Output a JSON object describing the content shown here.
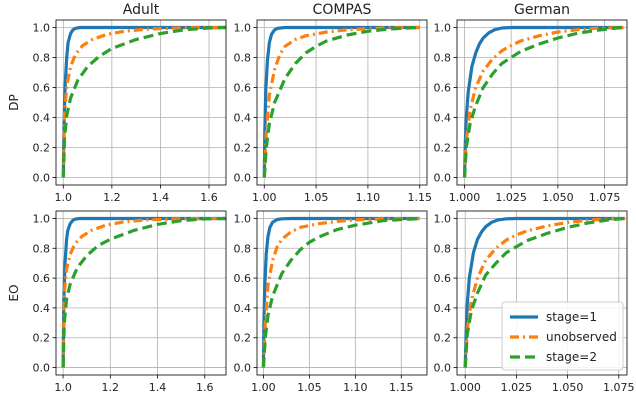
{
  "chart_data": [
    {
      "type": "line",
      "title": "Adult",
      "ylabel": "DP",
      "xlim": [
        0.97,
        1.67
      ],
      "ylim": [
        -0.05,
        1.05
      ],
      "xticks": [
        1.0,
        1.2,
        1.4,
        1.6
      ],
      "xtick_labels": [
        "1.0",
        "1.2",
        "1.4",
        "1.6"
      ],
      "yticks": [
        0,
        0.2,
        0.4,
        0.6,
        0.8,
        1.0
      ],
      "ytick_labels": [
        "0.0",
        "0.2",
        "0.4",
        "0.6",
        "0.8",
        "1.0"
      ],
      "grid": true,
      "series": [
        {
          "key": "s1",
          "x": [
            1.0,
            1.003,
            1.008,
            1.014,
            1.02,
            1.03,
            1.04,
            1.05,
            1.07,
            1.1,
            1.67
          ],
          "y": [
            0.0,
            0.35,
            0.62,
            0.8,
            0.9,
            0.96,
            0.985,
            0.995,
            1.0,
            1.0,
            1.0
          ]
        },
        {
          "key": "unobs",
          "x": [
            1.0,
            1.005,
            1.015,
            1.03,
            1.05,
            1.08,
            1.12,
            1.18,
            1.25,
            1.35,
            1.5,
            1.67
          ],
          "y": [
            0.0,
            0.42,
            0.62,
            0.74,
            0.82,
            0.88,
            0.92,
            0.955,
            0.975,
            0.99,
            0.998,
            1.0
          ]
        },
        {
          "key": "s2",
          "x": [
            1.0,
            1.005,
            1.015,
            1.03,
            1.06,
            1.1,
            1.15,
            1.2,
            1.3,
            1.4,
            1.5,
            1.6,
            1.67
          ],
          "y": [
            0.0,
            0.26,
            0.42,
            0.53,
            0.65,
            0.74,
            0.81,
            0.86,
            0.92,
            0.96,
            0.985,
            0.997,
            1.0
          ]
        }
      ]
    },
    {
      "type": "line",
      "title": "COMPAS",
      "ylabel": "",
      "xlim": [
        0.993,
        1.157
      ],
      "ylim": [
        -0.05,
        1.05
      ],
      "xticks": [
        1.0,
        1.05,
        1.1,
        1.15
      ],
      "xtick_labels": [
        "1.00",
        "1.05",
        "1.10",
        "1.15"
      ],
      "yticks": [
        0,
        0.2,
        0.4,
        0.6,
        0.8,
        1.0
      ],
      "ytick_labels": [
        "0.0",
        "0.2",
        "0.4",
        "0.6",
        "0.8",
        "1.0"
      ],
      "grid": true,
      "series": [
        {
          "key": "s1",
          "x": [
            1.0,
            1.0005,
            1.0015,
            1.003,
            1.005,
            1.007,
            1.01,
            1.013,
            1.02,
            1.03,
            1.15
          ],
          "y": [
            0.0,
            0.3,
            0.58,
            0.78,
            0.9,
            0.955,
            0.985,
            0.995,
            1.0,
            1.0,
            1.0
          ]
        },
        {
          "key": "unobs",
          "x": [
            1.0,
            1.002,
            1.005,
            1.01,
            1.015,
            1.02,
            1.03,
            1.04,
            1.06,
            1.08,
            1.1,
            1.12,
            1.15
          ],
          "y": [
            0.0,
            0.3,
            0.55,
            0.72,
            0.82,
            0.875,
            0.92,
            0.945,
            0.97,
            0.985,
            0.993,
            0.998,
            1.0
          ]
        },
        {
          "key": "s2",
          "x": [
            1.0,
            1.002,
            1.005,
            1.01,
            1.02,
            1.03,
            1.04,
            1.05,
            1.06,
            1.08,
            1.1,
            1.12,
            1.15
          ],
          "y": [
            0.0,
            0.2,
            0.36,
            0.5,
            0.66,
            0.76,
            0.83,
            0.875,
            0.91,
            0.95,
            0.975,
            0.99,
            1.0
          ]
        }
      ]
    },
    {
      "type": "line",
      "title": "German",
      "ylabel": "",
      "xlim": [
        0.996,
        1.087
      ],
      "ylim": [
        -0.05,
        1.05
      ],
      "xticks": [
        1.0,
        1.025,
        1.05,
        1.075
      ],
      "xtick_labels": [
        "1.000",
        "1.025",
        "1.050",
        "1.075"
      ],
      "yticks": [
        0,
        0.2,
        0.4,
        0.6,
        0.8,
        1.0
      ],
      "ytick_labels": [
        "0.0",
        "0.2",
        "0.4",
        "0.6",
        "0.8",
        "1.0"
      ],
      "grid": true,
      "series": [
        {
          "key": "s1",
          "x": [
            1.0,
            1.0005,
            1.001,
            1.002,
            1.004,
            1.006,
            1.008,
            1.01,
            1.013,
            1.016,
            1.02,
            1.025,
            1.085
          ],
          "y": [
            0.0,
            0.25,
            0.4,
            0.57,
            0.74,
            0.83,
            0.89,
            0.93,
            0.965,
            0.985,
            0.997,
            1.0,
            1.0
          ]
        },
        {
          "key": "unobs",
          "x": [
            1.0,
            1.001,
            1.003,
            1.006,
            1.01,
            1.015,
            1.02,
            1.025,
            1.03,
            1.04,
            1.05,
            1.06,
            1.07,
            1.085
          ],
          "y": [
            0.0,
            0.25,
            0.45,
            0.6,
            0.71,
            0.79,
            0.845,
            0.88,
            0.91,
            0.945,
            0.97,
            0.985,
            0.995,
            1.0
          ]
        },
        {
          "key": "s2",
          "x": [
            1.0,
            1.001,
            1.003,
            1.006,
            1.01,
            1.015,
            1.02,
            1.03,
            1.04,
            1.05,
            1.06,
            1.07,
            1.08,
            1.085
          ],
          "y": [
            0.0,
            0.2,
            0.36,
            0.48,
            0.6,
            0.69,
            0.76,
            0.84,
            0.89,
            0.93,
            0.96,
            0.98,
            0.995,
            1.0
          ]
        }
      ]
    },
    {
      "type": "line",
      "title": "",
      "ylabel": "EO",
      "xlim": [
        0.97,
        1.69
      ],
      "ylim": [
        -0.05,
        1.05
      ],
      "xticks": [
        1.0,
        1.2,
        1.4,
        1.6
      ],
      "xtick_labels": [
        "1.0",
        "1.2",
        "1.4",
        "1.6"
      ],
      "yticks": [
        0,
        0.2,
        0.4,
        0.6,
        0.8,
        1.0
      ],
      "ytick_labels": [
        "0.0",
        "0.2",
        "0.4",
        "0.6",
        "0.8",
        "1.0"
      ],
      "grid": true,
      "series": [
        {
          "key": "s1",
          "x": [
            1.0,
            1.003,
            1.008,
            1.015,
            1.02,
            1.03,
            1.04,
            1.05,
            1.07,
            1.1,
            1.69
          ],
          "y": [
            0.0,
            0.45,
            0.7,
            0.86,
            0.92,
            0.965,
            0.985,
            0.995,
            1.0,
            1.0,
            1.0
          ]
        },
        {
          "key": "unobs",
          "x": [
            1.0,
            1.005,
            1.015,
            1.03,
            1.05,
            1.08,
            1.12,
            1.18,
            1.25,
            1.35,
            1.5,
            1.69
          ],
          "y": [
            0.0,
            0.5,
            0.66,
            0.76,
            0.83,
            0.88,
            0.92,
            0.955,
            0.975,
            0.99,
            0.998,
            1.0
          ]
        },
        {
          "key": "s2",
          "x": [
            1.0,
            1.005,
            1.015,
            1.03,
            1.06,
            1.1,
            1.15,
            1.2,
            1.3,
            1.4,
            1.5,
            1.6,
            1.69
          ],
          "y": [
            0.0,
            0.3,
            0.46,
            0.56,
            0.67,
            0.75,
            0.82,
            0.86,
            0.92,
            0.96,
            0.985,
            0.997,
            1.0
          ]
        }
      ]
    },
    {
      "type": "line",
      "title": "",
      "ylabel": "",
      "xlim": [
        0.993,
        1.178
      ],
      "ylim": [
        -0.05,
        1.05
      ],
      "xticks": [
        1.0,
        1.05,
        1.1,
        1.15
      ],
      "xtick_labels": [
        "1.00",
        "1.05",
        "1.10",
        "1.15"
      ],
      "yticks": [
        0,
        0.2,
        0.4,
        0.6,
        0.8,
        1.0
      ],
      "ytick_labels": [
        "0.0",
        "0.2",
        "0.4",
        "0.6",
        "0.8",
        "1.0"
      ],
      "grid": true,
      "series": [
        {
          "key": "s1",
          "x": [
            1.0,
            1.0005,
            1.0015,
            1.003,
            1.005,
            1.007,
            1.01,
            1.015,
            1.02,
            1.03,
            1.17
          ],
          "y": [
            0.0,
            0.3,
            0.55,
            0.76,
            0.88,
            0.94,
            0.975,
            0.993,
            0.998,
            1.0,
            1.0
          ]
        },
        {
          "key": "unobs",
          "x": [
            1.0,
            1.002,
            1.005,
            1.01,
            1.015,
            1.02,
            1.03,
            1.04,
            1.06,
            1.08,
            1.1,
            1.13,
            1.17
          ],
          "y": [
            0.0,
            0.3,
            0.55,
            0.72,
            0.81,
            0.86,
            0.91,
            0.94,
            0.965,
            0.98,
            0.99,
            0.997,
            1.0
          ]
        },
        {
          "key": "s2",
          "x": [
            1.0,
            1.002,
            1.005,
            1.01,
            1.02,
            1.03,
            1.04,
            1.05,
            1.06,
            1.08,
            1.1,
            1.13,
            1.17
          ],
          "y": [
            0.0,
            0.2,
            0.35,
            0.48,
            0.63,
            0.72,
            0.79,
            0.84,
            0.875,
            0.925,
            0.955,
            0.985,
            1.0
          ]
        }
      ]
    },
    {
      "type": "line",
      "title": "",
      "ylabel": "",
      "xlim": [
        0.996,
        1.079
      ],
      "ylim": [
        -0.05,
        1.05
      ],
      "xticks": [
        1.0,
        1.025,
        1.05,
        1.075
      ],
      "xtick_labels": [
        "1.000",
        "1.025",
        "1.050",
        "1.075"
      ],
      "yticks": [
        0,
        0.2,
        0.4,
        0.6,
        0.8,
        1.0
      ],
      "ytick_labels": [
        "0.0",
        "0.2",
        "0.4",
        "0.6",
        "0.8",
        "1.0"
      ],
      "grid": true,
      "legend": {
        "position": "lower-right",
        "entries": [
          {
            "key": "s1",
            "label": "stage=1"
          },
          {
            "key": "unobs",
            "label": "unobserved"
          },
          {
            "key": "s2",
            "label": "stage=2"
          }
        ]
      },
      "series": [
        {
          "key": "s1",
          "x": [
            1.0,
            1.0005,
            1.001,
            1.002,
            1.004,
            1.006,
            1.008,
            1.01,
            1.013,
            1.016,
            1.02,
            1.025,
            1.078
          ],
          "y": [
            0.0,
            0.25,
            0.42,
            0.6,
            0.77,
            0.86,
            0.91,
            0.945,
            0.975,
            0.99,
            0.998,
            1.0,
            1.0
          ]
        },
        {
          "key": "unobs",
          "x": [
            1.0,
            1.001,
            1.003,
            1.006,
            1.01,
            1.015,
            1.02,
            1.025,
            1.03,
            1.04,
            1.05,
            1.06,
            1.07,
            1.078
          ],
          "y": [
            0.0,
            0.25,
            0.45,
            0.6,
            0.72,
            0.8,
            0.855,
            0.89,
            0.915,
            0.95,
            0.973,
            0.988,
            0.996,
            1.0
          ]
        },
        {
          "key": "s2",
          "x": [
            1.0,
            1.001,
            1.003,
            1.006,
            1.01,
            1.015,
            1.02,
            1.03,
            1.04,
            1.05,
            1.06,
            1.07,
            1.078
          ],
          "y": [
            0.0,
            0.22,
            0.38,
            0.5,
            0.62,
            0.7,
            0.77,
            0.85,
            0.9,
            0.94,
            0.97,
            0.99,
            1.0
          ]
        }
      ]
    }
  ],
  "styles": {
    "s1": {
      "color": "#1f77b4",
      "dash": "solid"
    },
    "unobs": {
      "color": "#ff7f0e",
      "dash": "dashdot"
    },
    "s2": {
      "color": "#2ca02c",
      "dash": "dashed"
    }
  },
  "colors": {
    "grid": "#b0b0b0",
    "axis": "#000000",
    "legend_border": "#cccccc"
  }
}
